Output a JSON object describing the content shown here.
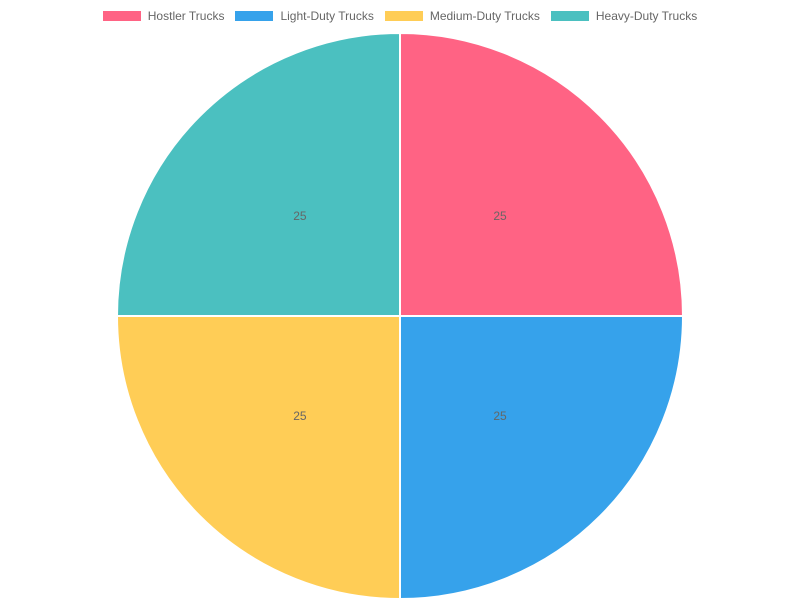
{
  "chart_data": {
    "type": "pie",
    "categories": [
      "Hostler Trucks",
      "Light-Duty Trucks",
      "Medium-Duty Trucks",
      "Heavy-Duty Trucks"
    ],
    "values": [
      25,
      25,
      25,
      25
    ],
    "colors": [
      "#ff6384",
      "#36a2eb",
      "#ffcd56",
      "#4bc0c0"
    ],
    "data_labels": [
      "25",
      "25",
      "25",
      "25"
    ],
    "legend_position": "top"
  }
}
